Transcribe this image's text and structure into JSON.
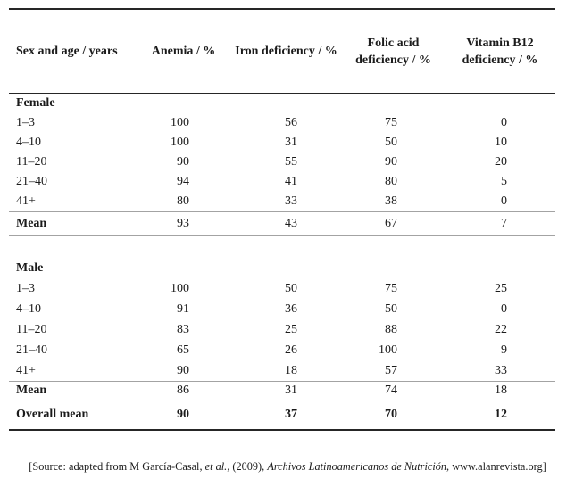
{
  "colors": {
    "text": "#1b1b1b",
    "table_border": "#262626",
    "section_rule": "#a3a3a3",
    "background": "#ffffff"
  },
  "table": {
    "header": {
      "sex_age": "Sex and age / years",
      "anemia": "Anemia / %",
      "iron": "Iron deficiency / %",
      "folic_line1": "Folic acid",
      "folic_line2": "deficiency / %",
      "b12_line1": "Vitamin B12",
      "b12_line2": "deficiency / %"
    },
    "female": {
      "label": "Female",
      "rows": [
        {
          "age": "1–3",
          "values": [
            "100",
            "56",
            "75",
            "0"
          ]
        },
        {
          "age": "4–10",
          "values": [
            "100",
            "31",
            "50",
            "10"
          ]
        },
        {
          "age": "11–20",
          "values": [
            "90",
            "55",
            "90",
            "20"
          ]
        },
        {
          "age": "21–40",
          "values": [
            "94",
            "41",
            "80",
            "5"
          ]
        },
        {
          "age": "41+",
          "values": [
            "80",
            "33",
            "38",
            "0"
          ]
        }
      ],
      "mean": {
        "label": "Mean",
        "values": [
          "93",
          "43",
          "67",
          "7"
        ]
      }
    },
    "male": {
      "label": "Male",
      "rows": [
        {
          "age": "1–3",
          "values": [
            "100",
            "50",
            "75",
            "25"
          ]
        },
        {
          "age": "4–10",
          "values": [
            "91",
            "36",
            "50",
            "0"
          ]
        },
        {
          "age": "11–20",
          "values": [
            "83",
            "25",
            "88",
            "22"
          ]
        },
        {
          "age": "21–40",
          "values": [
            "65",
            "26",
            "100",
            "9"
          ]
        },
        {
          "age": "41+",
          "values": [
            "90",
            "18",
            "57",
            "33"
          ]
        }
      ],
      "mean": {
        "label": "Mean",
        "values": [
          "86",
          "31",
          "74",
          "18"
        ]
      }
    },
    "overall": {
      "label": "Overall mean",
      "values": [
        "90",
        "37",
        "70",
        "12"
      ]
    }
  },
  "footer": {
    "segments": [
      {
        "text": "[Source: adapted from M García-Casal, "
      },
      {
        "text": "et al."
      },
      {
        "text": ", (2009), "
      },
      {
        "text": "Archivos Latinoamericanos de Nutrición"
      },
      {
        "text": ", www.alanrevista.org]"
      }
    ]
  }
}
